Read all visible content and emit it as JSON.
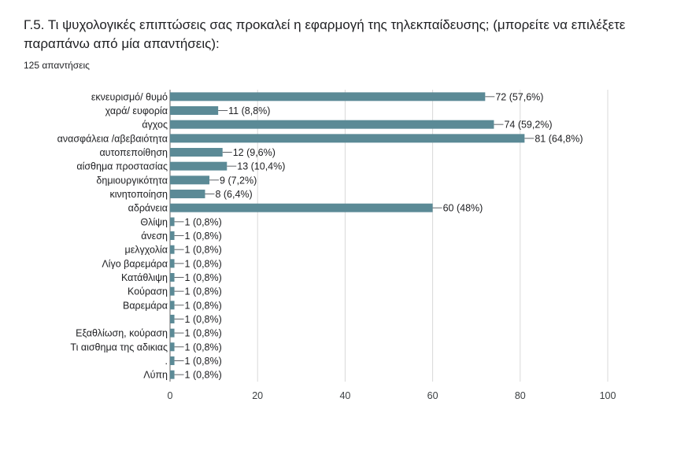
{
  "question": {
    "title": "Γ.5. Τι ψυχολογικές επιπτώσεις σας προκαλεί η εφαρμογή της τηλεκπαίδευσης; (μπορείτε να επιλέξετε παραπάνω από μία απαντήσεις):",
    "responses": "125 απαντήσεις"
  },
  "chart_data": {
    "type": "bar",
    "orientation": "horizontal",
    "bar_color": "#5b8a96",
    "categories": [
      "εκνευρισμό/ θυμό",
      "χαρά/ ευφορία",
      "άγχος",
      "ανασφάλεια /αβεβαιότητα",
      "αυτοπεποίθηση",
      "αίσθημα προστασίας",
      "δημιουργικότητα",
      "κινητοποίηση",
      "αδράνεια",
      "Θλίψη",
      "άνεση",
      "μελγχολία",
      "Λίγο βαρεμάρα",
      "Κατάθλιψη",
      "Κούραση",
      "Βαρεμάρα",
      "",
      "Εξαθλίωση, κούραση",
      "Τι αισθημα της αδικιας",
      ".",
      "Λύπη"
    ],
    "values": [
      72,
      11,
      74,
      81,
      12,
      13,
      9,
      8,
      60,
      1,
      1,
      1,
      1,
      1,
      1,
      1,
      1,
      1,
      1,
      1,
      1
    ],
    "value_labels": [
      "72 (57,6%)",
      "11 (8,8%)",
      "74 (59,2%)",
      "81 (64,8%)",
      "12 (9,6%)",
      "13 (10,4%)",
      "9 (7,2%)",
      "8 (6,4%)",
      "60 (48%)",
      "1 (0,8%)",
      "1 (0,8%)",
      "1 (0,8%)",
      "1 (0,8%)",
      "1 (0,8%)",
      "1 (0,8%)",
      "1 (0,8%)",
      "1 (0,8%)",
      "1 (0,8%)",
      "1 (0,8%)",
      "1 (0,8%)",
      "1 (0,8%)"
    ],
    "xlim": [
      0,
      100
    ],
    "xticks": [
      0,
      20,
      40,
      60,
      80,
      100
    ],
    "grid": true
  }
}
